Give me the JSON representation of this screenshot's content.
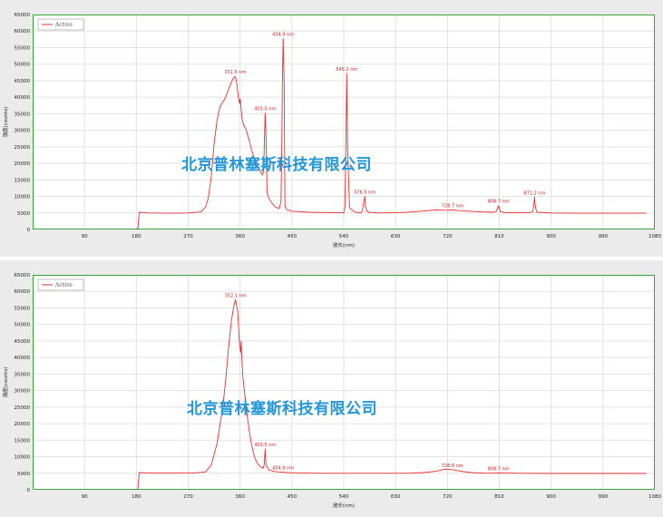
{
  "watermark": "北京普林塞斯科技有限公司",
  "chart_data": [
    {
      "type": "line",
      "ylabel": "强度(counts)",
      "xlabel": "波长(nm)",
      "xlim": [
        0,
        1080
      ],
      "ylim": [
        0,
        65000
      ],
      "x_ticks": [
        90,
        180,
        270,
        360,
        450,
        540,
        630,
        720,
        810,
        900,
        990,
        1080
      ],
      "y_ticks": [
        0,
        5000,
        10000,
        15000,
        20000,
        25000,
        30000,
        35000,
        40000,
        45000,
        50000,
        55000,
        60000,
        65000
      ],
      "grid": true,
      "legend": "top-left",
      "line_color": "#e83030",
      "series": [
        {
          "name": "Active",
          "x": [
            182,
            183,
            185,
            200,
            240,
            270,
            292,
            300,
            305,
            310,
            315,
            320,
            325,
            330,
            335,
            340,
            345,
            348,
            351.5,
            354,
            357,
            359,
            360,
            361,
            363,
            366,
            370,
            375,
            380,
            385,
            390,
            394,
            397,
            399,
            401,
            403.5,
            405,
            407,
            410,
            415,
            420,
            425,
            428,
            431,
            432.5,
            433.5,
            434.9,
            436.5,
            438,
            441,
            450,
            480,
            520,
            538,
            540,
            542,
            543.5,
            545.2,
            547,
            550,
            560,
            570,
            572,
            574,
            576.5,
            578,
            580,
            582,
            600,
            640,
            680,
            700,
            720,
            728.7,
            740,
            780,
            800,
            805,
            808.7,
            812,
            820,
            860,
            868,
            870,
            871.2,
            872.5,
            875,
            900,
            950,
            1000,
            1050,
            1065
          ],
          "y": [
            0,
            800,
            5200,
            5000,
            4900,
            5000,
            5300,
            6800,
            9500,
            16000,
            26000,
            33000,
            37000,
            38500,
            40000,
            42500,
            44500,
            45600,
            46300,
            44500,
            40000,
            38000,
            39500,
            38500,
            34000,
            31500,
            30500,
            27500,
            24000,
            21500,
            19500,
            18000,
            17000,
            16500,
            17800,
            35200,
            28000,
            11000,
            9500,
            8000,
            7000,
            6500,
            6300,
            8500,
            25000,
            45000,
            57800,
            44000,
            7000,
            6000,
            5500,
            5200,
            5100,
            5100,
            5000,
            7000,
            22000,
            47200,
            23000,
            6500,
            5200,
            5100,
            5500,
            7500,
            10000,
            7000,
            5600,
            5200,
            5000,
            5100,
            5600,
            5900,
            5800,
            5900,
            5700,
            5300,
            5200,
            5500,
            7200,
            5400,
            5100,
            5100,
            5300,
            7500,
            9800,
            7000,
            5200,
            5000,
            4900,
            4900,
            4900,
            4900
          ]
        }
      ],
      "annotations": [
        {
          "text": "351.5 nm",
          "x": 351.5,
          "y": 46300
        },
        {
          "text": "403.5 nm",
          "x": 403.5,
          "y": 35200
        },
        {
          "text": "434.9 nm",
          "x": 434.9,
          "y": 57800
        },
        {
          "text": "545.2 nm",
          "x": 545.2,
          "y": 47200
        },
        {
          "text": "576.5 nm",
          "x": 576.5,
          "y": 10000
        },
        {
          "text": "728.7 nm",
          "x": 728.7,
          "y": 5900
        },
        {
          "text": "808.7 nm",
          "x": 808.7,
          "y": 7200
        },
        {
          "text": "871.2 nm",
          "x": 871.2,
          "y": 9800
        }
      ]
    },
    {
      "type": "line",
      "ylabel": "强度(counts)",
      "xlabel": "波长(nm)",
      "xlim": [
        0,
        1080
      ],
      "ylim": [
        0,
        65000
      ],
      "x_ticks": [
        90,
        180,
        270,
        360,
        450,
        540,
        630,
        720,
        810,
        900,
        990,
        1080
      ],
      "y_ticks": [
        0,
        5000,
        10000,
        15000,
        20000,
        25000,
        30000,
        35000,
        40000,
        45000,
        50000,
        55000,
        60000,
        65000
      ],
      "grid": true,
      "legend": "top-left",
      "line_color": "#e83030",
      "series": [
        {
          "name": "Active",
          "x": [
            182,
            183,
            185,
            200,
            250,
            280,
            300,
            310,
            320,
            330,
            335,
            340,
            345,
            349,
            352.1,
            356,
            359,
            361,
            362,
            363,
            365,
            370,
            375,
            380,
            385,
            390,
            395,
            400,
            402,
            403.5,
            405,
            410,
            420,
            434.9,
            440,
            460,
            500,
            550,
            600,
            650,
            680,
            700,
            715,
            728.6,
            740,
            760,
            790,
            808.7,
            850,
            900,
            950,
            1000,
            1065
          ],
          "y": [
            0,
            800,
            5200,
            5100,
            5100,
            5100,
            5400,
            7500,
            14000,
            25000,
            33000,
            43000,
            51000,
            55500,
            57500,
            54000,
            44000,
            41500,
            45000,
            40000,
            34000,
            26000,
            19000,
            13500,
            10000,
            8000,
            7000,
            6500,
            7500,
            12300,
            7500,
            6000,
            5500,
            5300,
            5200,
            5100,
            5000,
            5000,
            5000,
            5000,
            5200,
            5600,
            6200,
            6100,
            5700,
            5200,
            5000,
            5100,
            5000,
            4950,
            4950,
            4950,
            4950
          ]
        }
      ],
      "annotations": [
        {
          "text": "352.1 nm",
          "x": 352.1,
          "y": 57500
        },
        {
          "text": "403.5 nm",
          "x": 403.5,
          "y": 12300
        },
        {
          "text": "434.9 nm",
          "x": 434.9,
          "y": 5300
        },
        {
          "text": "728.6 nm",
          "x": 728.6,
          "y": 6100
        },
        {
          "text": "808.7 nm",
          "x": 808.7,
          "y": 5100
        }
      ]
    }
  ]
}
